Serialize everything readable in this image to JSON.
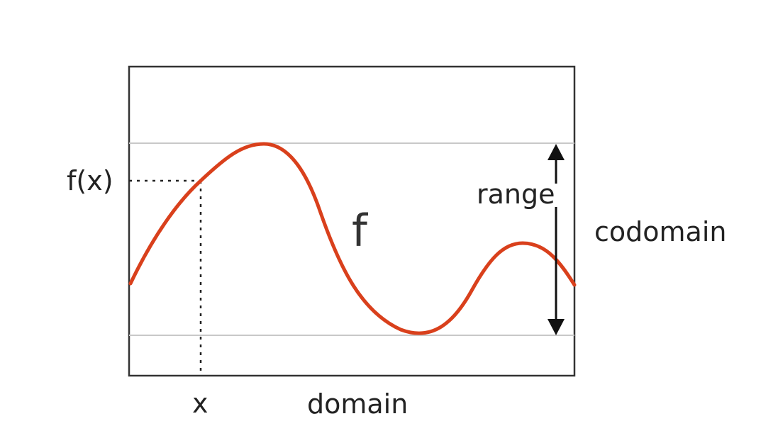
{
  "diagram": {
    "labels": {
      "fx": "f(x)",
      "x": "x",
      "f": "f",
      "range": "range",
      "codomain": "codomain",
      "domain": "domain"
    },
    "colors": {
      "curve": "#d9401c",
      "frame": "#333333",
      "guides": "#c8c8c8",
      "dotted": "#222222",
      "arrow": "#111111",
      "text": "#222222"
    }
  }
}
